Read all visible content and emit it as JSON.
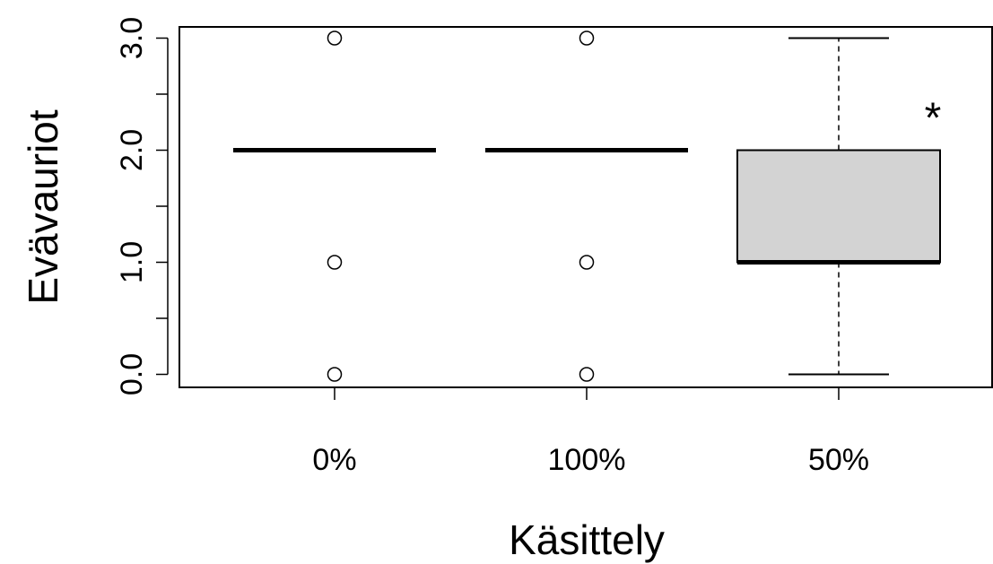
{
  "chart_data": {
    "type": "box",
    "title": "",
    "xlabel": "Käsittely",
    "ylabel": "Evävauriot",
    "categories": [
      "0%",
      "100%",
      "50%"
    ],
    "ylim": [
      -0.1,
      3.1
    ],
    "yticks": [
      0,
      0.5,
      1,
      1.5,
      2,
      2.5,
      3
    ],
    "ytick_labels": [
      "0.0",
      "",
      "1.0",
      "",
      "2.0",
      "",
      "3.0"
    ],
    "boxes": [
      {
        "category": "0%",
        "whisker_low": 2,
        "q1": 2,
        "median": 2,
        "q3": 2,
        "whisker_high": 2,
        "outliers": [
          0,
          1,
          3
        ]
      },
      {
        "category": "100%",
        "whisker_low": 2,
        "q1": 2,
        "median": 2,
        "q3": 2,
        "whisker_high": 2,
        "outliers": [
          0,
          1,
          3
        ]
      },
      {
        "category": "50%",
        "whisker_low": 0,
        "q1": 1,
        "median": 1,
        "q3": 2,
        "whisker_high": 3,
        "outliers": []
      }
    ],
    "annotations": [
      {
        "text": "*",
        "category": "50%",
        "y": 2.4
      }
    ],
    "box_fill": "#d3d3d3",
    "grid": false,
    "legend": "none"
  }
}
